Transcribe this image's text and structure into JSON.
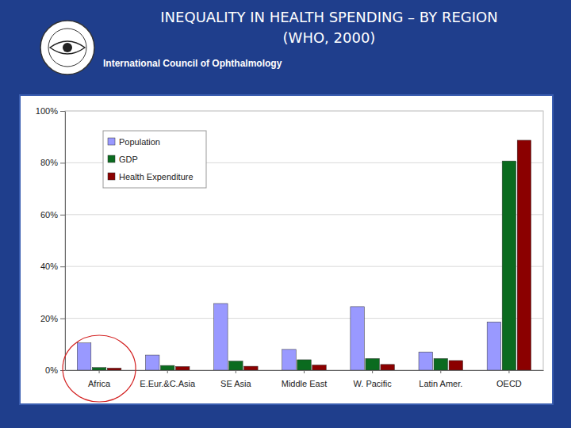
{
  "chart_data": {
    "type": "bar",
    "title": "INEQUALITY IN HEALTH SPENDING – BY REGION",
    "subtitle": "(WHO, 2000)",
    "annotations": [
      "International Council of Ophthalmology"
    ],
    "categories": [
      "Africa",
      "E.Eur.&C.Asia",
      "SE Asia",
      "Middle East",
      "W. Pacific",
      "Latin Amer.",
      "OECD"
    ],
    "series": [
      {
        "name": "Population",
        "color": "#9999ff",
        "values": [
          10.5,
          5.8,
          25.7,
          8,
          24.5,
          7,
          18.6
        ]
      },
      {
        "name": "GDP",
        "color": "#0b6b1f",
        "values": [
          1,
          1.8,
          3.5,
          4,
          4.5,
          4.5,
          80.7
        ]
      },
      {
        "name": "Health Expenditure",
        "color": "#8b0000",
        "values": [
          0.8,
          1.4,
          1.5,
          2,
          2.2,
          3.7,
          88.7
        ]
      }
    ],
    "ylim": [
      0,
      100
    ],
    "yticks": [
      {
        "value": 0,
        "label": "0%"
      },
      {
        "value": 20,
        "label": "20%"
      },
      {
        "value": 40,
        "label": "40%"
      },
      {
        "value": 60,
        "label": "60%"
      },
      {
        "value": 80,
        "label": "80%"
      },
      {
        "value": 100,
        "label": "100%"
      }
    ],
    "grid": true,
    "legend": "upper left"
  }
}
